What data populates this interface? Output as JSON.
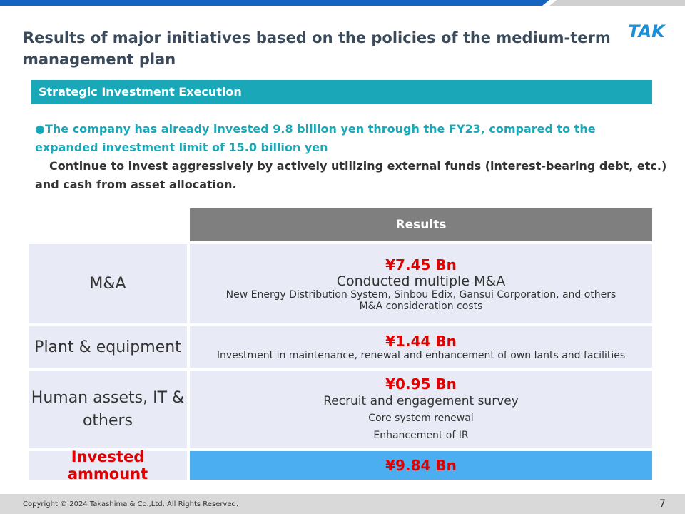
{
  "header": {
    "title_line1": "Results of major initiatives based on the policies of the medium-term",
    "title_line2": "management plan",
    "logo": "TAK"
  },
  "section": {
    "heading": "Strategic Investment Execution"
  },
  "intro": {
    "bullet": "●",
    "line1": "The company has already invested 9.8 billion yen through the FY23, compared to the",
    "line2": "expanded investment limit of 15.0 billion yen",
    "line3": "Continue to invest aggressively by actively utilizing external funds (interest-bearing debt, etc.)",
    "line4": "and cash from asset allocation."
  },
  "table": {
    "column_header": "Results",
    "rows": [
      {
        "label": "M&A",
        "amount": "¥7.45 Bn",
        "lines": [
          "Conducted multiple M&A",
          "New Energy Distribution System, Sinbou Edix, Gansui Corporation, and others",
          "M&A consideration costs"
        ]
      },
      {
        "label": "Plant & equipment",
        "amount": "¥1.44 Bn",
        "lines": [
          "Investment in maintenance, renewal and enhancement of own lants and facilities"
        ]
      },
      {
        "label_line1": "Human assets, IT &",
        "label_line2": "others",
        "amount": "¥0.95 Bn",
        "lines": [
          "Recruit and engagement survey",
          "Core system renewal",
          "Enhancement of IR"
        ]
      }
    ],
    "total": {
      "label": "Invested ammount",
      "amount": "¥9.84 Bn"
    }
  },
  "footer": {
    "copyright": "Copyright © 2024 Takashima & Co.,Ltd. All Rights Reserved.",
    "page": "7"
  }
}
